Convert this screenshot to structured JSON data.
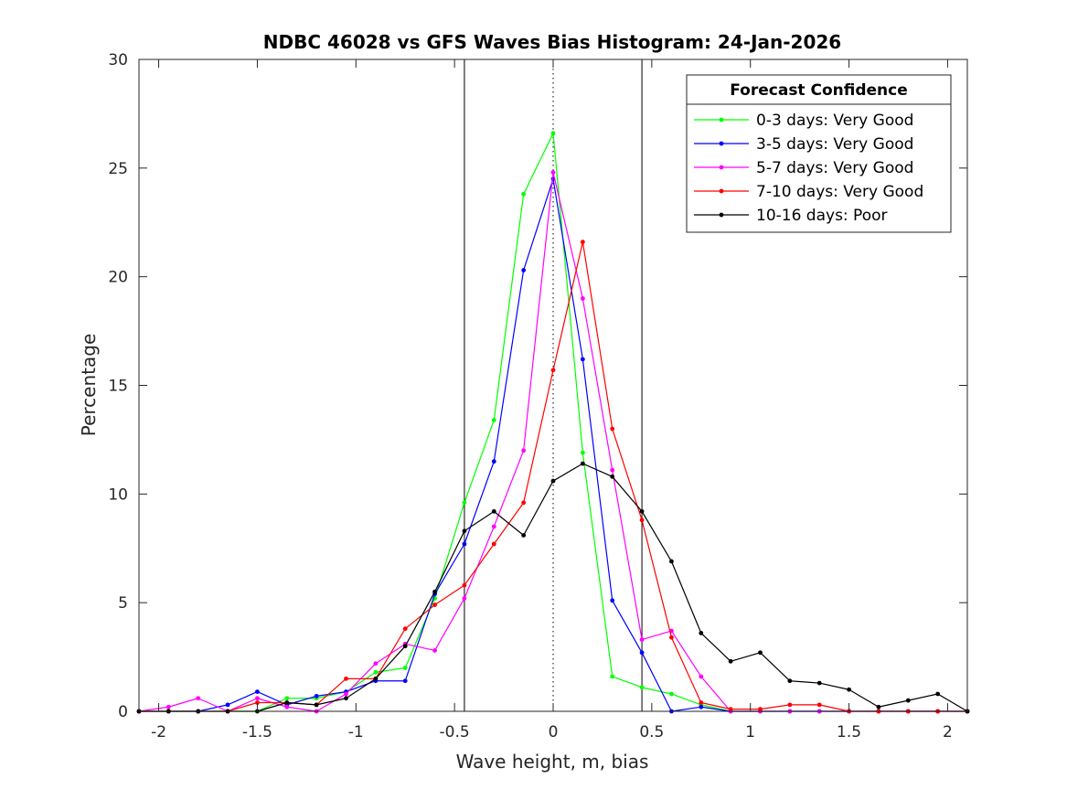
{
  "chart_data": {
    "type": "line",
    "title": "NDBC 46028 vs GFS Waves Bias Histogram: 24-Jan-2026",
    "xlabel": "Wave height, m, bias",
    "ylabel": "Percentage",
    "xlim": [
      -2.1,
      2.1
    ],
    "ylim": [
      0,
      30
    ],
    "xticks": [
      -2,
      -1.5,
      -1,
      -0.5,
      0,
      0.5,
      1,
      1.5,
      2
    ],
    "xtick_labels": [
      "-2",
      "-1.5",
      "-1",
      "-0.5",
      "0",
      "0.5",
      "1",
      "1.5",
      "2"
    ],
    "yticks": [
      0,
      5,
      10,
      15,
      20,
      25,
      30
    ],
    "ytick_labels": [
      "0",
      "5",
      "10",
      "15",
      "20",
      "25",
      "30"
    ],
    "vlines": [
      {
        "x": -0.45,
        "style": "solid"
      },
      {
        "x": 0,
        "style": "dotted"
      },
      {
        "x": 0.45,
        "style": "solid"
      }
    ],
    "legend": {
      "title": "Forecast Confidence",
      "position": "top-right"
    },
    "x": [
      -2.1,
      -1.95,
      -1.8,
      -1.65,
      -1.5,
      -1.35,
      -1.2,
      -1.05,
      -0.9,
      -0.75,
      -0.6,
      -0.45,
      -0.3,
      -0.15,
      0,
      0.15,
      0.3,
      0.45,
      0.6,
      0.75,
      0.9,
      1.05,
      1.2,
      1.35,
      1.5,
      1.65,
      1.8,
      1.95,
      2.1
    ],
    "series": [
      {
        "name": "0-3 days: Very Good",
        "color": "#00ff00",
        "values": [
          0,
          0,
          0,
          0,
          0,
          0.6,
          0.6,
          0.9,
          1.8,
          2.0,
          5.2,
          9.6,
          13.4,
          23.8,
          26.6,
          11.9,
          1.6,
          1.1,
          0.8,
          0.3,
          0,
          0,
          0,
          0,
          0,
          0,
          0,
          0,
          0
        ]
      },
      {
        "name": "3-5 days: Very Good",
        "color": "#0000ff",
        "values": [
          0,
          0,
          0,
          0.3,
          0.9,
          0.3,
          0.7,
          0.9,
          1.4,
          1.4,
          5.4,
          7.7,
          11.5,
          20.3,
          24.5,
          16.2,
          5.1,
          2.7,
          0,
          0.2,
          0,
          0,
          0,
          0,
          0,
          0,
          0,
          0,
          0
        ]
      },
      {
        "name": "5-7 days: Very Good",
        "color": "#ff00ff",
        "values": [
          0,
          0.2,
          0.6,
          0,
          0.6,
          0.2,
          0,
          0.8,
          2.2,
          3.1,
          2.8,
          5.2,
          8.5,
          12.0,
          24.8,
          19.0,
          11.1,
          3.3,
          3.7,
          1.6,
          0,
          0,
          0,
          0,
          0,
          0,
          0,
          0,
          0
        ]
      },
      {
        "name": "7-10 days: Very Good",
        "color": "#ff0000",
        "values": [
          0,
          0,
          0,
          0,
          0.4,
          0.4,
          0.3,
          1.5,
          1.5,
          3.8,
          4.9,
          5.8,
          7.7,
          9.6,
          15.7,
          21.6,
          13.0,
          8.8,
          3.4,
          0.4,
          0.1,
          0.1,
          0.3,
          0.3,
          0,
          0,
          0,
          0,
          0
        ]
      },
      {
        "name": "10-16 days: Poor",
        "color": "#000000",
        "values": [
          0,
          0,
          0,
          0,
          0,
          0.4,
          0.3,
          0.6,
          1.5,
          3.0,
          5.5,
          8.3,
          9.2,
          8.1,
          10.6,
          11.4,
          10.8,
          9.2,
          6.9,
          3.6,
          2.3,
          2.7,
          1.4,
          1.3,
          1.0,
          0.2,
          0.5,
          0.8,
          0
        ]
      }
    ]
  }
}
